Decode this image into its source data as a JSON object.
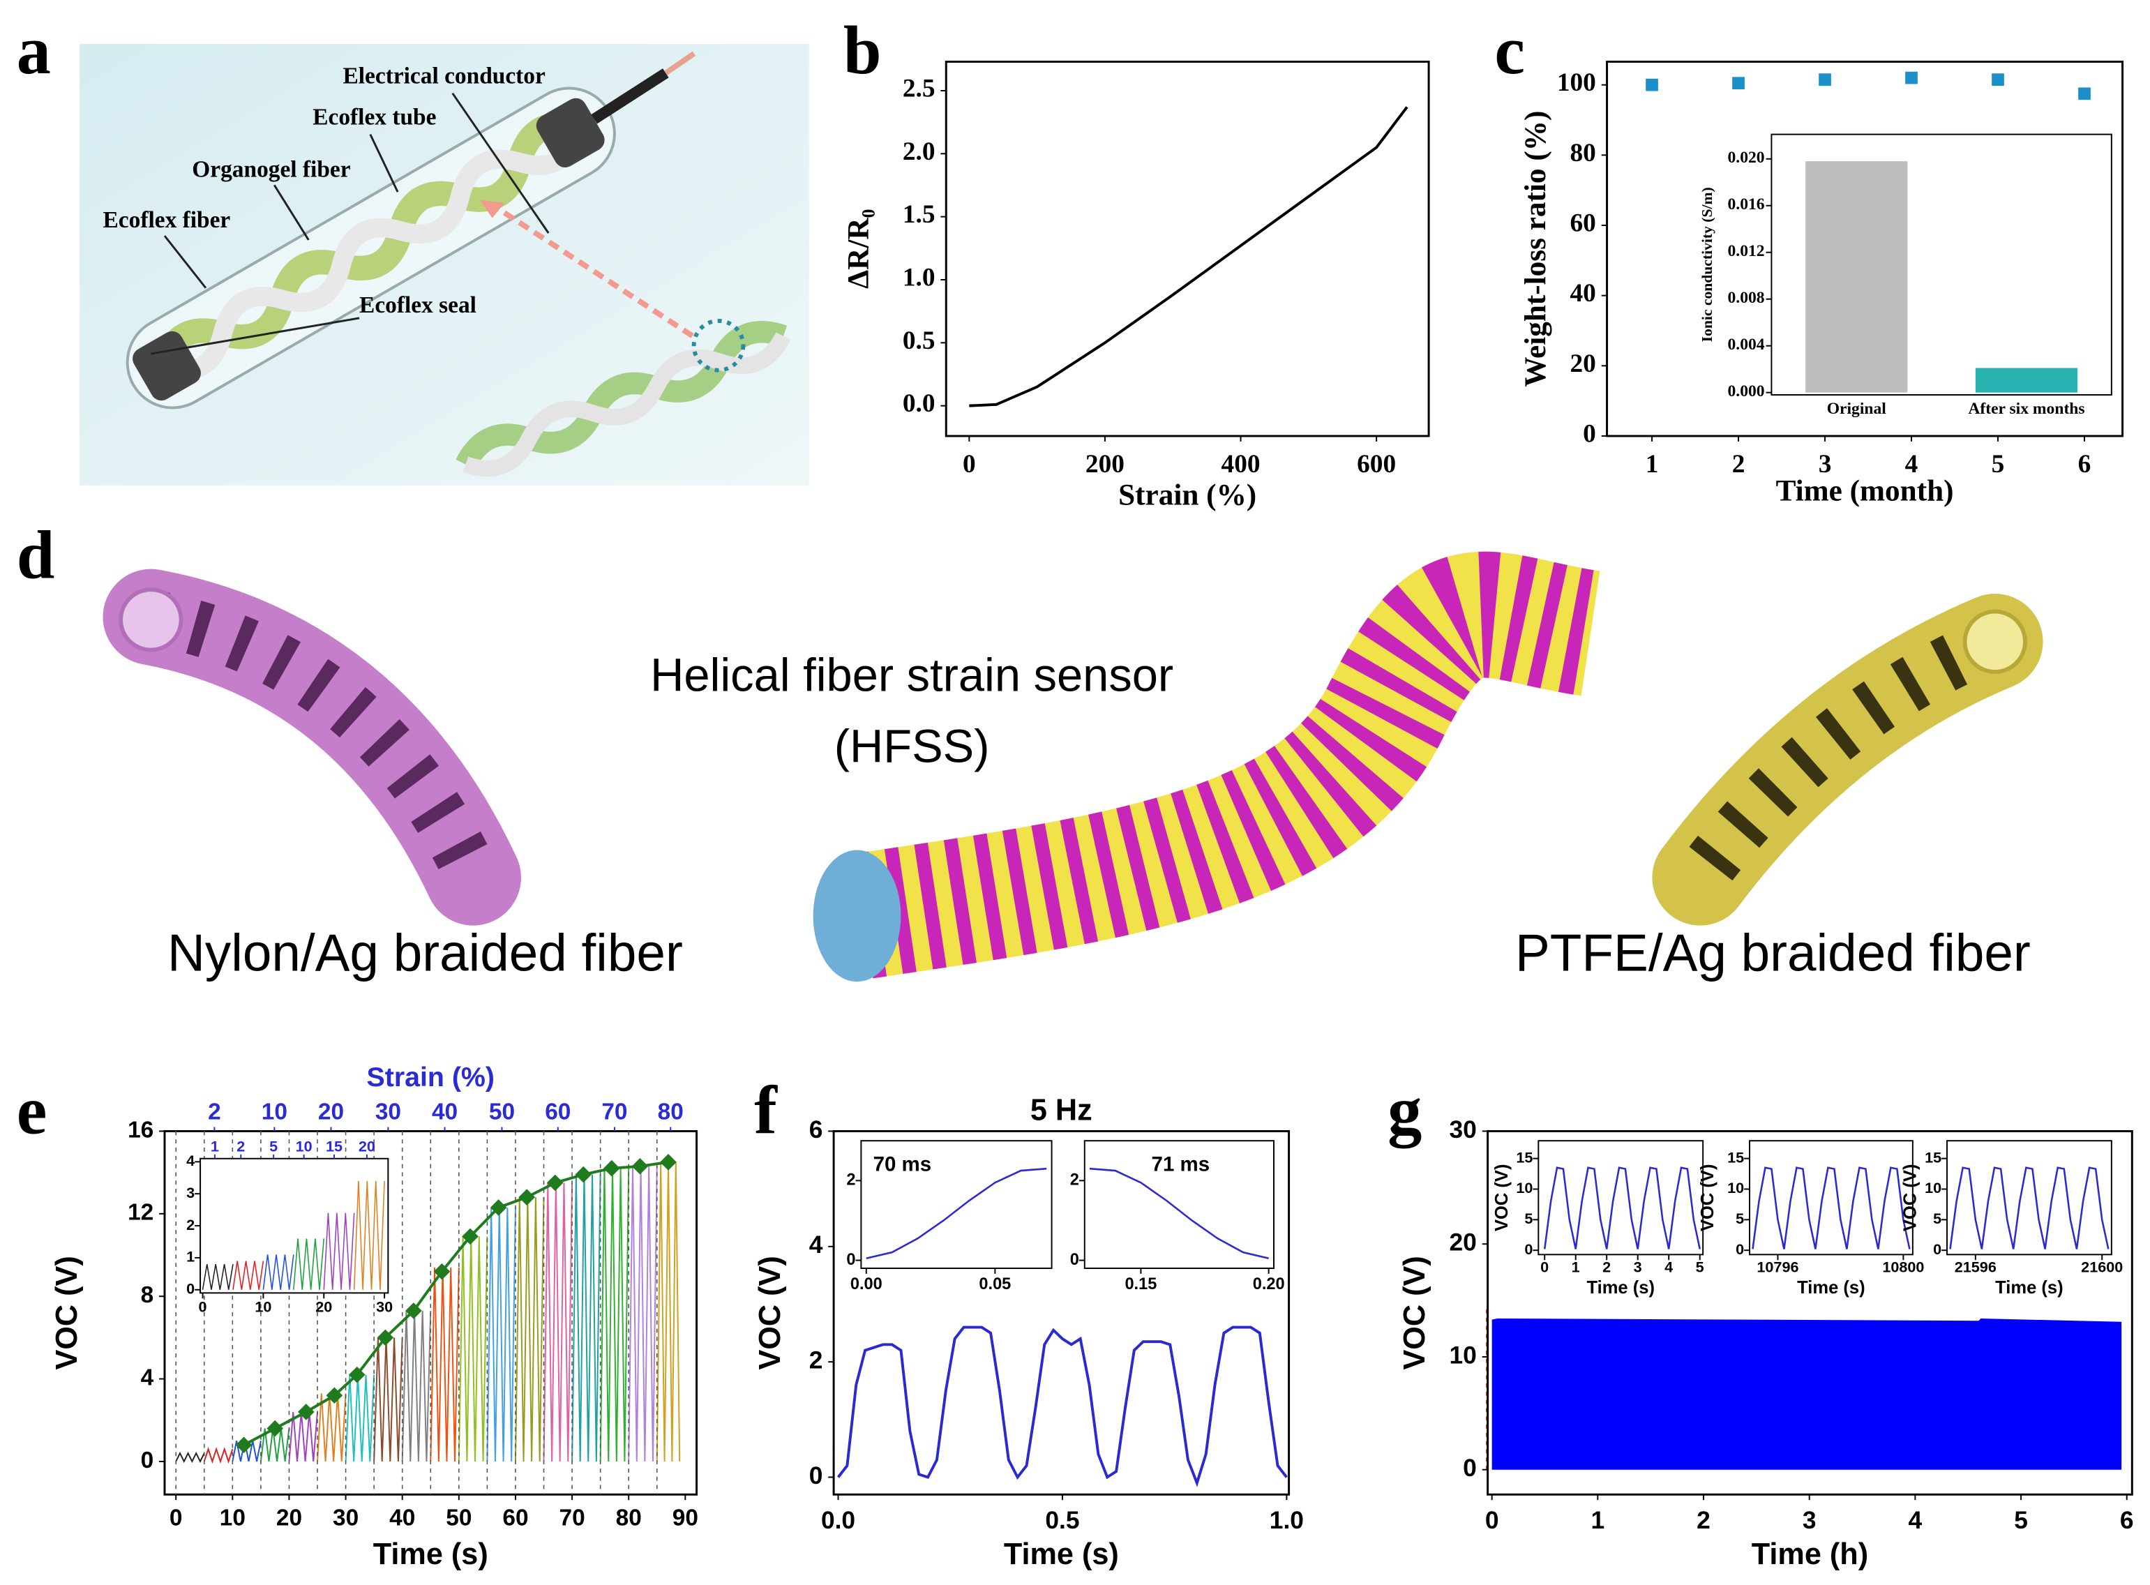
{
  "figure": {
    "panel_labels": [
      "a",
      "b",
      "c",
      "d",
      "e",
      "f",
      "g"
    ],
    "panel_a": {
      "labels": [
        "Electrical conductor",
        "Ecoflex tube",
        "Organogel fiber",
        "Ecoflex fiber",
        "Ecoflex seal"
      ]
    },
    "panel_d": {
      "title": [
        "Helical fiber strain sensor",
        "(HFSS)"
      ],
      "left": "Nylon/Ag braided fiber",
      "right": "PTFE/Ag braided fiber"
    }
  },
  "chart_data": [
    {
      "type": "line",
      "xlabel": "Strain (%)",
      "ylabel": "ΔR/R₀",
      "x": [
        0,
        40,
        100,
        200,
        300,
        400,
        500,
        600,
        645
      ],
      "series": [
        {
          "color": "#000000",
          "values": [
            0,
            0.01,
            0.15,
            0.5,
            0.88,
            1.27,
            1.66,
            2.05,
            2.37
          ]
        }
      ],
      "xlim": [
        -34,
        677
      ],
      "xticks": [
        0,
        200,
        400,
        600
      ],
      "ylim": [
        -0.24,
        2.73
      ],
      "yticks": [
        {
          "value": 0,
          "label": "0.0"
        },
        0.5,
        {
          "value": 1,
          "label": "1.0"
        },
        1.5,
        {
          "value": 2,
          "label": "2.0"
        },
        2.5
      ]
    },
    {
      "type": "scatter",
      "xlabel": "Time (month)",
      "ylabel": "Weight-loss ratio (%)",
      "x": [
        1,
        2,
        3,
        4,
        5,
        6
      ],
      "series": [
        {
          "color": "#1a8fc9",
          "values": [
            100,
            100.5,
            101.5,
            102,
            101.5,
            97.5
          ]
        }
      ],
      "xlim": [
        0.48,
        6.44
      ],
      "xticks": [
        1,
        2,
        3,
        4,
        5,
        6
      ],
      "ylim": [
        0,
        106.6
      ],
      "yticks": [
        0,
        20,
        40,
        60,
        80,
        100
      ]
    },
    {
      "type": "bar",
      "ylabel": "Ionic conductivity (S/m)",
      "categories": [
        "Original",
        "After six months"
      ],
      "values": [
        0.0198,
        0.0021
      ],
      "colors": [
        "#bdbdbd",
        "#2ab3b3"
      ],
      "ylim": [
        -0.0002,
        0.0221
      ],
      "yticks": [
        {
          "value": 0,
          "label": "0.000"
        },
        0.004,
        0.008,
        0.012,
        0.016,
        {
          "value": 0.02,
          "label": "0.020"
        }
      ]
    },
    {
      "type": "line",
      "xlabel": "Time (s)",
      "ylabel": "VOC (V)",
      "x2label": "Strain (%)",
      "x2color": "#2b2bd6",
      "x2ticks": [
        {
          "value": 6.8,
          "label": "2"
        },
        {
          "value": 17.4,
          "label": "10"
        },
        {
          "value": 27.4,
          "label": "20"
        },
        {
          "value": 37.5,
          "label": "30"
        },
        {
          "value": 47.5,
          "label": "40"
        },
        {
          "value": 57.6,
          "label": "50"
        },
        {
          "value": 67.5,
          "label": "60"
        },
        {
          "value": 77.5,
          "label": "70"
        },
        {
          "value": 87.4,
          "label": "80"
        }
      ],
      "x": [
        12,
        17.5,
        23,
        28,
        32,
        37,
        42,
        47,
        52,
        57,
        62,
        67,
        72,
        77,
        82,
        87
      ],
      "series": [
        {
          "color": "#1e7b1e",
          "marker": "diamond",
          "values": [
            0.8,
            1.6,
            2.4,
            3.2,
            4.2,
            6,
            7.3,
            9.2,
            10.9,
            12.3,
            12.8,
            13.5,
            13.9,
            14.2,
            14.3,
            14.5
          ]
        }
      ],
      "bursts": [
        {
          "x0": 0,
          "x1": 5,
          "peak": 0.4,
          "color": "#222222"
        },
        {
          "x0": 5,
          "x1": 10,
          "peak": 0.6,
          "color": "#e02020"
        },
        {
          "x0": 10,
          "x1": 15,
          "peak": 1.0,
          "color": "#2050e0"
        },
        {
          "x0": 15,
          "x1": 20,
          "peak": 1.6,
          "color": "#20a040"
        },
        {
          "x0": 20,
          "x1": 25,
          "peak": 2.4,
          "color": "#a040c0"
        },
        {
          "x0": 25,
          "x1": 30,
          "peak": 3.3,
          "color": "#e08020"
        },
        {
          "x0": 30,
          "x1": 35,
          "peak": 4.2,
          "color": "#20c0c0"
        },
        {
          "x0": 35,
          "x1": 40,
          "peak": 6,
          "color": "#8b4a2b"
        },
        {
          "x0": 40,
          "x1": 45,
          "peak": 7.3,
          "color": "#808080"
        },
        {
          "x0": 45,
          "x1": 50,
          "peak": 9.4,
          "color": "#f05010"
        },
        {
          "x0": 50,
          "x1": 55,
          "peak": 10.9,
          "color": "#90c020"
        },
        {
          "x0": 55,
          "x1": 60,
          "peak": 12.3,
          "color": "#40a0e0"
        },
        {
          "x0": 60,
          "x1": 65,
          "peak": 12.8,
          "color": "#9a9a20"
        },
        {
          "x0": 65,
          "x1": 70,
          "peak": 13.5,
          "color": "#e060a0"
        },
        {
          "x0": 70,
          "x1": 75,
          "peak": 13.9,
          "color": "#20a0a0"
        },
        {
          "x0": 75,
          "x1": 80,
          "peak": 14.2,
          "color": "#30b030"
        },
        {
          "x0": 80,
          "x1": 85,
          "peak": 14.3,
          "color": "#b080e0"
        },
        {
          "x0": 85,
          "x1": 89,
          "peak": 14.5,
          "color": "#d0a020"
        }
      ],
      "xlim": [
        -2,
        92
      ],
      "xticks": [
        0,
        10,
        20,
        30,
        40,
        50,
        60,
        70,
        80,
        90
      ],
      "ylim": [
        -1.6,
        16
      ],
      "yticks": [
        0,
        4,
        8,
        12,
        16
      ]
    },
    {
      "type": "line",
      "x2color": "#2b2bd6",
      "x2ticks": [
        {
          "value": 2,
          "label": "1"
        },
        {
          "value": 6.3,
          "label": "2"
        },
        {
          "value": 11.7,
          "label": "5"
        },
        {
          "value": 16.7,
          "label": "10"
        },
        {
          "value": 21.7,
          "label": "15"
        },
        {
          "value": 27.1,
          "label": "20"
        }
      ],
      "bursts": [
        {
          "x0": 0,
          "x1": 5,
          "peak": 0.8,
          "color": "#222222"
        },
        {
          "x0": 5,
          "x1": 10,
          "peak": 0.9,
          "color": "#e02020"
        },
        {
          "x0": 10,
          "x1": 15,
          "peak": 1.1,
          "color": "#2050e0"
        },
        {
          "x0": 15,
          "x1": 20,
          "peak": 1.6,
          "color": "#20a040"
        },
        {
          "x0": 20,
          "x1": 25,
          "peak": 2.4,
          "color": "#a040c0"
        },
        {
          "x0": 25,
          "x1": 30,
          "peak": 3.4,
          "color": "#e08020"
        }
      ],
      "xlim": [
        -0.4,
        30.6
      ],
      "xticks": [
        0,
        10,
        20,
        30
      ],
      "ylim": [
        -0.1,
        4.1
      ],
      "yticks": [
        0,
        1,
        2,
        3,
        4
      ]
    },
    {
      "type": "line",
      "title": "5 Hz",
      "xlabel": "Time (s)",
      "ylabel": "VOC (V)",
      "x": [
        0,
        0.02,
        0.04,
        0.06,
        0.08,
        0.1,
        0.12,
        0.14,
        0.16,
        0.18,
        0.2,
        0.22,
        0.24,
        0.26,
        0.28,
        0.3,
        0.32,
        0.34,
        0.36,
        0.38,
        0.4,
        0.42,
        0.44,
        0.46,
        0.48,
        0.5,
        0.52,
        0.54,
        0.56,
        0.58,
        0.6,
        0.62,
        0.64,
        0.66,
        0.68,
        0.7,
        0.72,
        0.74,
        0.76,
        0.78,
        0.8,
        0.82,
        0.84,
        0.86,
        0.88,
        0.9,
        0.92,
        0.94,
        0.96,
        0.98,
        1
      ],
      "series": [
        {
          "color": "#2a2ad0",
          "values": [
            0,
            0.2,
            1.6,
            2.2,
            2.25,
            2.3,
            2.3,
            2.2,
            0.8,
            0.05,
            0,
            0.3,
            1.5,
            2.4,
            2.6,
            2.6,
            2.6,
            2.5,
            1.5,
            0.3,
            0,
            0.2,
            1.2,
            2.3,
            2.55,
            2.4,
            2.3,
            2.4,
            1.6,
            0.4,
            0,
            0.1,
            1.2,
            2.2,
            2.35,
            2.35,
            2.35,
            2.3,
            1.4,
            0.3,
            -0.1,
            0.4,
            1.6,
            2.5,
            2.6,
            2.6,
            2.6,
            2.5,
            1.3,
            0.2,
            0
          ]
        }
      ],
      "xlim": [
        -0.01,
        1.005
      ],
      "xticks": [
        {
          "value": 0,
          "label": "0.0"
        },
        0.5,
        {
          "value": 1,
          "label": "1.0"
        }
      ],
      "ylim": [
        -0.3,
        6
      ],
      "yticks": [
        0,
        2,
        4,
        6
      ]
    },
    {
      "type": "line",
      "annotation": "70 ms",
      "x": [
        0,
        0.01,
        0.02,
        0.03,
        0.04,
        0.05,
        0.06,
        0.07
      ],
      "series": [
        {
          "color": "#2a2ad0",
          "values": [
            0.05,
            0.2,
            0.55,
            1.0,
            1.5,
            1.95,
            2.25,
            2.3
          ]
        }
      ],
      "xlim": [
        -0.002,
        0.072
      ],
      "xticks": [
        {
          "value": 0,
          "label": "0.00"
        },
        0.05
      ],
      "ylim": [
        -0.2,
        3
      ],
      "yticks": [
        0,
        2
      ]
    },
    {
      "type": "line",
      "annotation": "71 ms",
      "x": [
        0.13,
        0.14,
        0.15,
        0.16,
        0.17,
        0.18,
        0.19,
        0.2
      ],
      "series": [
        {
          "color": "#2a2ad0",
          "values": [
            2.3,
            2.25,
            1.95,
            1.5,
            1.0,
            0.55,
            0.2,
            0.05
          ]
        }
      ],
      "xlim": [
        0.128,
        0.202
      ],
      "xticks": [
        0.15,
        {
          "value": 0.2,
          "label": "0.20"
        }
      ],
      "ylim": [
        -0.2,
        3
      ],
      "yticks": [
        0,
        2
      ]
    },
    {
      "type": "area",
      "xlabel": "Time (h)",
      "ylabel": "VOC (V)",
      "color": "#0000ff",
      "envelope": {
        "x": [
          0,
          0.05,
          4.6,
          4.62,
          5.95
        ],
        "upper": [
          13.3,
          13.4,
          13.2,
          13.4,
          13.1
        ]
      },
      "xlim": [
        -0.04,
        6.05
      ],
      "xticks": [
        0,
        1,
        2,
        3,
        4,
        5,
        6
      ],
      "ylim": [
        -2.2,
        30
      ],
      "yticks": [
        0,
        10,
        20,
        30
      ]
    },
    {
      "type": "line",
      "xlabel": "Time (s)",
      "ylabel": "VOC (V)",
      "x": [
        0,
        0.2,
        0.4,
        0.6,
        0.8,
        1,
        1.2,
        1.4,
        1.6,
        1.8,
        2,
        2.2,
        2.4,
        2.6,
        2.8,
        3,
        3.2,
        3.4,
        3.6,
        3.8,
        4,
        4.2,
        4.4,
        4.6,
        4.8,
        5
      ],
      "series": [
        {
          "color": "#2a2ad0",
          "values": [
            0.2,
            8,
            13.5,
            13.3,
            5,
            0.2,
            8,
            13.5,
            13.3,
            5,
            0.2,
            8,
            13.5,
            13.3,
            5,
            0.2,
            8,
            13.5,
            13.3,
            5,
            0.2,
            8,
            13.5,
            13.3,
            5,
            0.2
          ]
        }
      ],
      "xlim": [
        -0.2,
        5.1
      ],
      "xticks": [
        0,
        1,
        2,
        3,
        4,
        5
      ],
      "ylim": [
        -0.7,
        17.9
      ],
      "yticks": [
        0,
        5,
        10,
        15
      ]
    },
    {
      "type": "line",
      "xlabel": "Time (s)",
      "ylabel": "VOC (V)",
      "x": [
        10795.2,
        10795.4,
        10795.6,
        10795.8,
        10796,
        10796.2,
        10796.4,
        10796.6,
        10796.8,
        10797,
        10797.2,
        10797.4,
        10797.6,
        10797.8,
        10798,
        10798.2,
        10798.4,
        10798.6,
        10798.8,
        10799,
        10799.2,
        10799.4,
        10799.6,
        10799.8,
        10800,
        10800.2
      ],
      "series": [
        {
          "color": "#2a2ad0",
          "values": [
            0.2,
            8,
            13.5,
            13.3,
            5,
            0.2,
            8,
            13.5,
            13.3,
            5,
            0.2,
            8,
            13.5,
            13.3,
            5,
            0.2,
            8,
            13.5,
            13.3,
            5,
            0.2,
            8,
            13.5,
            13.3,
            5,
            0.2
          ]
        }
      ],
      "xlim": [
        10795.1,
        10800.3
      ],
      "xticks": [
        10796,
        10800
      ],
      "ylim": [
        -0.7,
        17.9
      ],
      "yticks": [
        0,
        5,
        10,
        15
      ]
    },
    {
      "type": "line",
      "xlabel": "Time (s)",
      "ylabel": "VOC (V)",
      "x": [
        21595.2,
        21595.4,
        21595.6,
        21595.8,
        21596,
        21596.2,
        21596.4,
        21596.6,
        21596.8,
        21597,
        21597.2,
        21597.4,
        21597.6,
        21597.8,
        21598,
        21598.2,
        21598.4,
        21598.6,
        21598.8,
        21599,
        21599.2,
        21599.4,
        21599.6,
        21599.8,
        21600,
        21600.2
      ],
      "series": [
        {
          "color": "#2a2ad0",
          "values": [
            0.2,
            8,
            13.5,
            13.3,
            5,
            0.2,
            8,
            13.5,
            13.3,
            5,
            0.2,
            8,
            13.5,
            13.3,
            5,
            0.2,
            8,
            13.5,
            13.3,
            5,
            0.2,
            8,
            13.5,
            13.3,
            5,
            0.2
          ]
        }
      ],
      "xlim": [
        21595.1,
        21600.3
      ],
      "xticks": [
        21596,
        21600
      ],
      "ylim": [
        -0.7,
        17.9
      ],
      "yticks": [
        0,
        5,
        10,
        15
      ]
    }
  ]
}
